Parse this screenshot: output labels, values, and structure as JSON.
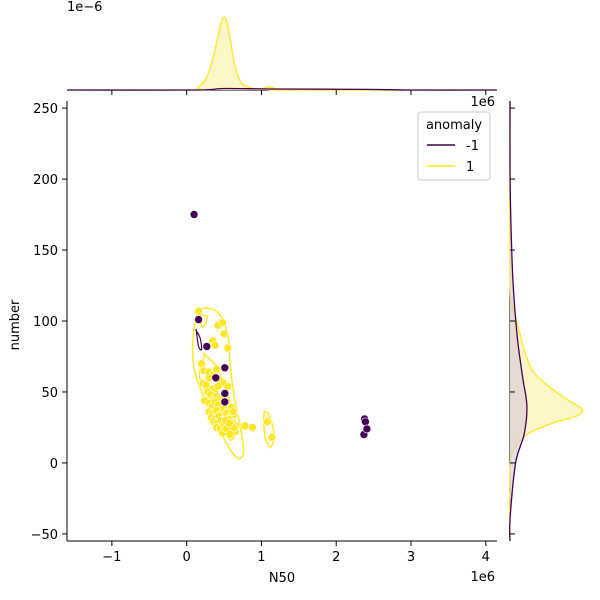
{
  "chart_data": {
    "type": "scatter",
    "title": "",
    "xlabel": "N50",
    "ylabel": "number",
    "x_offset_label": "1e6",
    "y_marginal_offset_label": "1e6",
    "x_marginal_offset_label": "1e−6",
    "xlim": [
      -1.6,
      4.15
    ],
    "ylim": [
      -55,
      255
    ],
    "xticks": [
      -1,
      0,
      1,
      2,
      3,
      4
    ],
    "xtick_labels": [
      "−1",
      "0",
      "1",
      "2",
      "3",
      "4"
    ],
    "yticks": [
      -50,
      0,
      50,
      100,
      150,
      200,
      250
    ],
    "ytick_labels": [
      "−50",
      "0",
      "50",
      "100",
      "150",
      "200",
      "250"
    ],
    "grid": false,
    "legend": {
      "title": "anomaly",
      "placement": "top-right",
      "entries": [
        {
          "label": "-1",
          "color": "#440154"
        },
        {
          "label": "1",
          "color": "#fde725"
        }
      ]
    },
    "colors": {
      "anomaly_neg": "#440154",
      "anomaly_pos": "#fde725",
      "fill_pos": "#fdf5c0"
    },
    "series": [
      {
        "name": "-1",
        "color": "#440154",
        "x": [
          0.1,
          0.16,
          0.27,
          0.39,
          0.51,
          0.51,
          0.51,
          2.37,
          2.38,
          2.39,
          2.41
        ],
        "y": [
          175,
          101,
          82,
          60,
          67,
          49,
          43,
          20,
          31,
          29,
          24
        ]
      },
      {
        "name": "1",
        "color": "#fde725",
        "x": [
          0.16,
          0.2,
          0.23,
          0.3,
          0.35,
          0.4,
          0.45,
          0.5,
          0.55,
          0.22,
          0.26,
          0.3,
          0.34,
          0.38,
          0.42,
          0.28,
          0.32,
          0.36,
          0.4,
          0.44,
          0.24,
          0.3,
          0.34,
          0.38,
          0.42,
          0.46,
          0.5,
          0.3,
          0.35,
          0.4,
          0.45,
          0.5,
          0.55,
          0.6,
          0.33,
          0.38,
          0.43,
          0.48,
          0.53,
          0.58,
          0.63,
          0.36,
          0.41,
          0.46,
          0.51,
          0.56,
          0.61,
          0.66,
          0.4,
          0.45,
          0.5,
          0.55,
          0.6,
          0.65,
          0.48,
          0.53,
          0.58,
          0.63,
          0.52,
          0.57,
          0.62,
          0.78,
          0.88,
          1.08,
          1.14,
          0.35,
          0.38,
          0.42,
          0.5,
          0.48,
          0.55
        ],
        "y": [
          107,
          70,
          65,
          64,
          62,
          66,
          58,
          56,
          54,
          56,
          55,
          60,
          52,
          50,
          54,
          50,
          48,
          45,
          47,
          45,
          44,
          42,
          40,
          43,
          41,
          38,
          46,
          36,
          35,
          37,
          34,
          38,
          36,
          39,
          32,
          31,
          33,
          30,
          35,
          32,
          34,
          29,
          28,
          30,
          27,
          31,
          28,
          26,
          25,
          24,
          27,
          23,
          26,
          22,
          21,
          24,
          20,
          25,
          30,
          28,
          36,
          26,
          25,
          29,
          18,
          86,
          83,
          97,
          91,
          99,
          81
        ]
      }
    ],
    "kde_contours_pos": [
      [
        [
          0.15,
          108
        ],
        [
          0.3,
          109
        ],
        [
          0.45,
          104
        ],
        [
          0.55,
          90
        ],
        [
          0.58,
          70
        ],
        [
          0.64,
          45
        ],
        [
          0.72,
          25
        ],
        [
          0.76,
          8
        ],
        [
          0.7,
          3
        ],
        [
          0.6,
          8
        ],
        [
          0.45,
          22
        ],
        [
          0.3,
          38
        ],
        [
          0.12,
          62
        ],
        [
          0.08,
          80
        ],
        [
          0.1,
          95
        ],
        [
          0.15,
          108
        ]
      ],
      [
        [
          0.2,
          104
        ],
        [
          0.28,
          103
        ],
        [
          0.22,
          96
        ],
        [
          0.18,
          100
        ],
        [
          0.2,
          104
        ]
      ],
      [
        [
          0.24,
          76
        ],
        [
          0.4,
          68
        ],
        [
          0.52,
          52
        ],
        [
          0.6,
          40
        ],
        [
          0.66,
          25
        ],
        [
          0.6,
          16
        ],
        [
          0.5,
          22
        ],
        [
          0.38,
          35
        ],
        [
          0.25,
          50
        ],
        [
          0.17,
          62
        ],
        [
          0.24,
          76
        ]
      ],
      [
        [
          0.38,
          48
        ],
        [
          0.5,
          40
        ],
        [
          0.56,
          30
        ],
        [
          0.5,
          26
        ],
        [
          0.42,
          32
        ],
        [
          0.35,
          42
        ],
        [
          0.38,
          48
        ]
      ],
      [
        [
          1.04,
          36
        ],
        [
          1.1,
          34
        ],
        [
          1.17,
          20
        ],
        [
          1.12,
          11
        ],
        [
          1.05,
          18
        ],
        [
          1.03,
          30
        ],
        [
          1.04,
          36
        ]
      ]
    ],
    "kde_contour_neg": [
      [
        0.13,
        93
      ],
      [
        0.18,
        88
      ],
      [
        0.2,
        80
      ],
      [
        0.16,
        82
      ],
      [
        0.13,
        93
      ]
    ],
    "marginal_x_pos_density": [
      [
        -1.6,
        0
      ],
      [
        0.0,
        0
      ],
      [
        0.15,
        0.3
      ],
      [
        0.28,
        1.8
      ],
      [
        0.38,
        5.0
      ],
      [
        0.46,
        8.3
      ],
      [
        0.52,
        8.9
      ],
      [
        0.58,
        6.5
      ],
      [
        0.64,
        3.2
      ],
      [
        0.72,
        1.0
      ],
      [
        0.85,
        0.3
      ],
      [
        1.0,
        0.15
      ],
      [
        1.1,
        0.4
      ],
      [
        1.2,
        0.15
      ],
      [
        1.35,
        0
      ],
      [
        4.15,
        0
      ]
    ],
    "marginal_x_neg_density": [
      [
        -1.6,
        0
      ],
      [
        0.1,
        0
      ],
      [
        0.5,
        0.18
      ],
      [
        1.2,
        0.12
      ],
      [
        2.4,
        0.08
      ],
      [
        3.0,
        0
      ],
      [
        4.15,
        0
      ]
    ],
    "marginal_y_pos_density": [
      [
        -55,
        0
      ],
      [
        -5,
        0
      ],
      [
        10,
        0.03
      ],
      [
        20,
        0.12
      ],
      [
        28,
        0.3
      ],
      [
        33,
        0.47
      ],
      [
        38,
        0.51
      ],
      [
        45,
        0.4
      ],
      [
        55,
        0.26
      ],
      [
        65,
        0.16
      ],
      [
        80,
        0.1
      ],
      [
        95,
        0.06
      ],
      [
        110,
        0.02
      ],
      [
        130,
        0
      ],
      [
        255,
        0
      ]
    ],
    "marginal_y_neg_density": [
      [
        -55,
        0
      ],
      [
        -40,
        0
      ],
      [
        0,
        0.04
      ],
      [
        20,
        0.1
      ],
      [
        40,
        0.12
      ],
      [
        60,
        0.09
      ],
      [
        90,
        0.05
      ],
      [
        130,
        0.02
      ],
      [
        175,
        0.005
      ],
      [
        210,
        0
      ],
      [
        255,
        0
      ]
    ]
  }
}
